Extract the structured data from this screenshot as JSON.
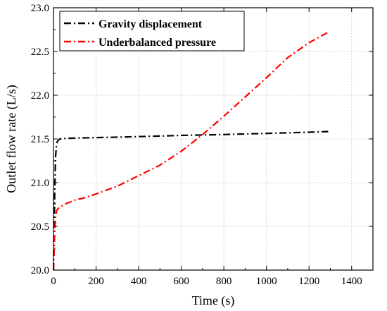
{
  "chart_data": {
    "type": "line",
    "xlabel": "Time (s)",
    "ylabel": "Outlet flow rate (L/s)",
    "xlim": [
      0,
      1500
    ],
    "ylim": [
      20.0,
      23.0
    ],
    "xticks": [
      "0",
      "200",
      "400",
      "600",
      "800",
      "1000",
      "1200",
      "1400"
    ],
    "yticks": [
      "20.0",
      "20.5",
      "21.0",
      "21.5",
      "22.0",
      "22.5",
      "23.0"
    ],
    "grid": true,
    "legend_position": "top-left",
    "series": [
      {
        "name": "Gravity displacement",
        "color": "#000000",
        "dash": "dash-dot",
        "x": [
          0,
          3,
          6,
          10,
          15,
          20,
          30,
          50,
          100,
          200,
          300,
          400,
          500,
          600,
          700,
          800,
          900,
          1000,
          1100,
          1200,
          1290
        ],
        "y": [
          20.0,
          20.4,
          20.9,
          21.3,
          21.45,
          21.48,
          21.5,
          21.505,
          21.51,
          21.515,
          21.52,
          21.527,
          21.533,
          21.54,
          21.545,
          21.55,
          21.557,
          21.563,
          21.57,
          21.577,
          21.585
        ]
      },
      {
        "name": "Underbalanced pressure",
        "color": "#ff0000",
        "dash": "dash-dot",
        "x": [
          0,
          3,
          6,
          10,
          15,
          20,
          30,
          50,
          100,
          150,
          200,
          300,
          400,
          500,
          600,
          700,
          800,
          900,
          1000,
          1100,
          1200,
          1290
        ],
        "y": [
          20.0,
          20.2,
          20.45,
          20.6,
          20.68,
          20.7,
          20.72,
          20.75,
          20.8,
          20.83,
          20.87,
          20.96,
          21.08,
          21.2,
          21.36,
          21.55,
          21.76,
          21.98,
          22.2,
          22.43,
          22.6,
          22.72
        ]
      }
    ]
  }
}
